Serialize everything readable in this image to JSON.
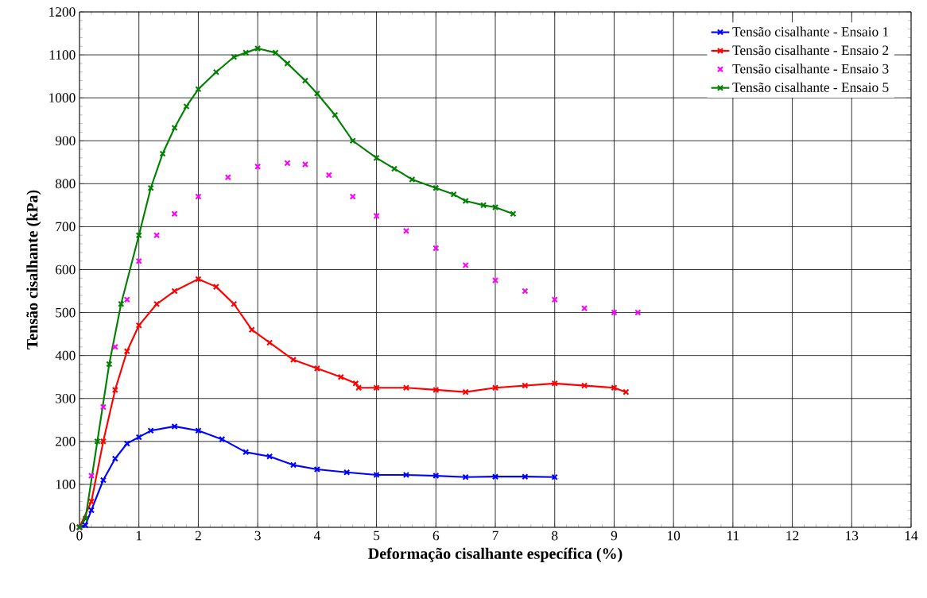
{
  "chart_data": {
    "type": "line",
    "xlabel": "Deformação cisalhante específica (%)",
    "ylabel": "Tensão cisalhante (kPa)",
    "xlim": [
      0,
      14
    ],
    "xticks": [
      0,
      1,
      2,
      3,
      4,
      5,
      6,
      7,
      8,
      9,
      10,
      11,
      12,
      13,
      14
    ],
    "ylim": [
      0,
      1200
    ],
    "yticks": [
      0,
      100,
      200,
      300,
      400,
      500,
      600,
      700,
      800,
      900,
      1000,
      1100,
      1200
    ],
    "grid": true,
    "legend": "top right",
    "marker": "cross",
    "line_style": "solid",
    "series": [
      {
        "name": "Tensão cisalhante - Ensaio 1",
        "color": "#0000ff",
        "x": [
          0,
          0.1,
          0.2,
          0.4,
          0.6,
          0.8,
          1.0,
          1.2,
          1.6,
          2.0,
          2.4,
          2.8,
          3.2,
          3.6,
          4.0,
          4.5,
          5.0,
          5.5,
          6.0,
          6.5,
          7.0,
          7.5,
          8.0
        ],
        "values": [
          0,
          5,
          40,
          110,
          160,
          195,
          210,
          225,
          235,
          225,
          205,
          175,
          165,
          145,
          135,
          128,
          122,
          122,
          120,
          117,
          118,
          118,
          117
        ]
      },
      {
        "name": "Tensão cisalhante - Ensaio 2",
        "color": "#ff0000",
        "x": [
          0,
          0.2,
          0.4,
          0.6,
          0.8,
          1.0,
          1.3,
          1.6,
          2.0,
          2.3,
          2.6,
          2.9,
          3.2,
          3.6,
          4.0,
          4.4,
          4.65,
          4.7,
          5.0,
          5.5,
          6.0,
          6.5,
          7.0,
          7.5,
          8.0,
          8.5,
          9.0,
          9.2
        ],
        "values": [
          0,
          60,
          200,
          320,
          410,
          470,
          520,
          550,
          578,
          560,
          520,
          460,
          430,
          390,
          370,
          350,
          335,
          325,
          325,
          325,
          320,
          315,
          325,
          330,
          335,
          330,
          325,
          315
        ]
      },
      {
        "name": "Tensão cisalhante - Ensaio 3",
        "color": "#ff00ff",
        "type": "scatter",
        "x": [
          0,
          0.2,
          0.4,
          0.6,
          0.8,
          1.0,
          1.3,
          1.6,
          2.0,
          2.5,
          3.0,
          3.5,
          3.8,
          4.2,
          4.6,
          5.0,
          5.5,
          6.0,
          6.5,
          7.0,
          7.5,
          8.0,
          8.5,
          9.0,
          9.4
        ],
        "values": [
          0,
          120,
          280,
          420,
          530,
          620,
          680,
          730,
          770,
          815,
          840,
          848,
          845,
          820,
          770,
          725,
          690,
          650,
          610,
          575,
          550,
          530,
          510,
          500,
          500
        ]
      },
      {
        "name": "Tensão cisalhante  - Ensaio 5",
        "color": "#008000",
        "x": [
          0,
          0.1,
          0.3,
          0.5,
          0.7,
          1.0,
          1.2,
          1.4,
          1.6,
          1.8,
          2.0,
          2.3,
          2.6,
          2.8,
          3.0,
          3.3,
          3.5,
          3.8,
          4.0,
          4.3,
          4.6,
          5.0,
          5.3,
          5.6,
          6.0,
          6.3,
          6.5,
          6.8,
          7.0,
          7.3
        ],
        "values": [
          0,
          20,
          200,
          380,
          520,
          680,
          790,
          870,
          930,
          980,
          1020,
          1060,
          1095,
          1105,
          1115,
          1105,
          1080,
          1040,
          1010,
          960,
          900,
          860,
          835,
          810,
          790,
          775,
          760,
          750,
          745,
          730
        ]
      }
    ]
  }
}
